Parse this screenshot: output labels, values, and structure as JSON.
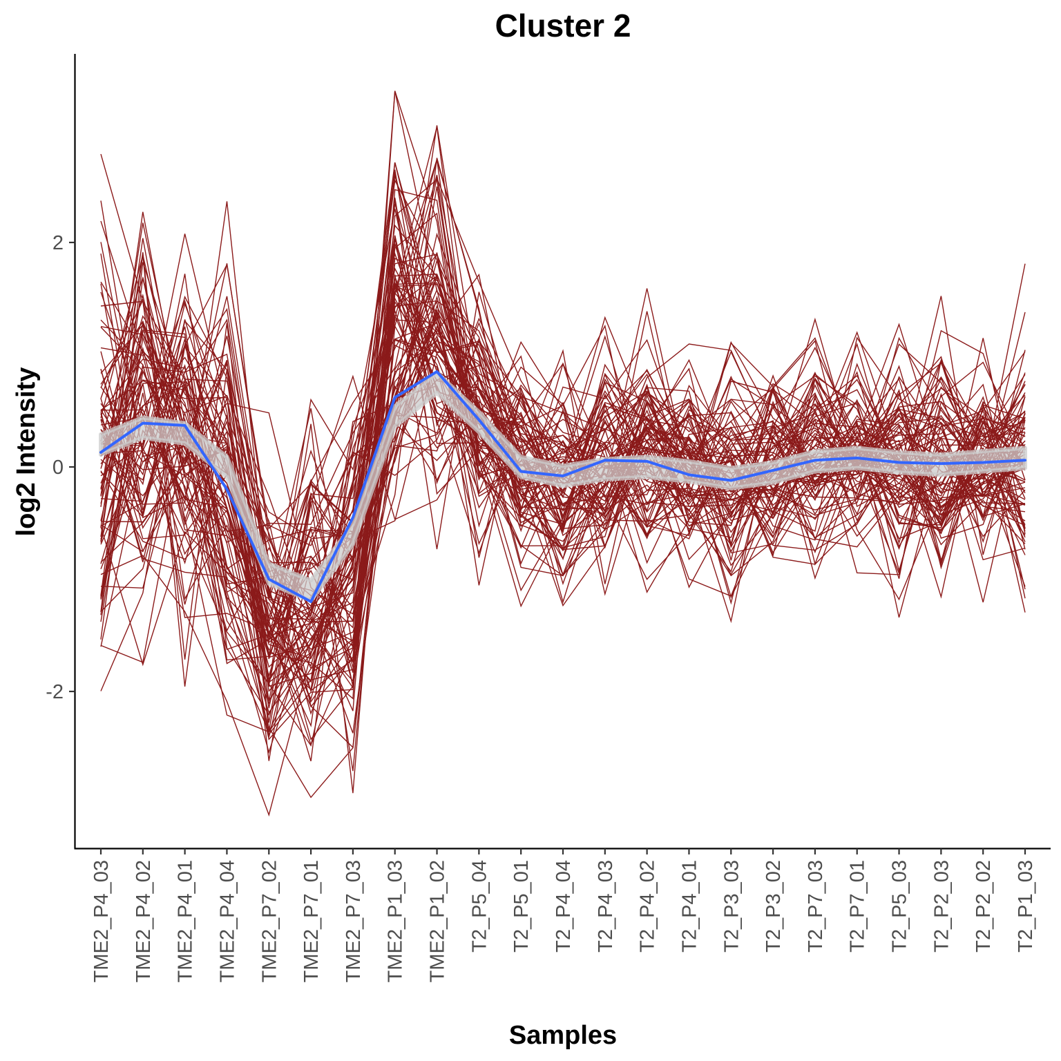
{
  "chart_data": {
    "type": "line",
    "title": "Cluster 2",
    "xlabel": "Samples",
    "ylabel": "log2 Intensity",
    "categories": [
      "TME2_P4_03",
      "TME2_P4_02",
      "TME2_P4_01",
      "TME2_P4_04",
      "TME2_P7_02",
      "TME2_P7_01",
      "TME2_P7_03",
      "TME2_P1_03",
      "TME2_P1_02",
      "T2_P5_04",
      "T2_P5_01",
      "T2_P4_04",
      "T2_P4_03",
      "T2_P4_02",
      "T2_P4_01",
      "T2_P3_03",
      "T2_P3_02",
      "T2_P7_03",
      "T2_P7_01",
      "T2_P5_03",
      "T2_P2_03",
      "T2_P2_02",
      "T2_P1_03"
    ],
    "y_ticks": [
      -2,
      0,
      2
    ],
    "y_tick_labels": [
      "-2",
      "0",
      "2"
    ],
    "ylim": [
      -3.4,
      3.7
    ],
    "grid": false,
    "legend": "none",
    "colors": {
      "profiles": "#8b1a1a",
      "mean": "#3366ff",
      "smooth_band": "#cccccc"
    },
    "mean_series": {
      "name": "",
      "values": [
        0.13,
        0.39,
        0.37,
        -0.2,
        -1.0,
        -1.2,
        -0.45,
        0.62,
        0.85,
        0.42,
        -0.04,
        -0.08,
        0.06,
        0.05,
        -0.07,
        -0.12,
        -0.03,
        0.06,
        0.08,
        0.04,
        0.03,
        0.04,
        0.06
      ]
    },
    "smooth_series": {
      "name": "",
      "values": [
        0.2,
        0.35,
        0.3,
        0.0,
        -0.95,
        -1.1,
        -0.6,
        0.45,
        0.75,
        0.4,
        0.0,
        -0.08,
        -0.02,
        0.0,
        -0.04,
        -0.1,
        -0.05,
        0.05,
        0.08,
        0.04,
        0.02,
        0.05,
        0.08
      ],
      "band_halfwidth": 0.09
    },
    "profile_centers": [
      0.13,
      0.39,
      0.37,
      -0.2,
      -1.5,
      -1.4,
      -1.0,
      1.3,
      1.3,
      0.42,
      -0.04,
      -0.08,
      0.06,
      0.05,
      -0.07,
      -0.12,
      -0.03,
      0.06,
      0.08,
      0.04,
      0.03,
      0.04,
      0.06
    ],
    "profile_spreads": [
      1.2,
      1.1,
      1.0,
      1.1,
      0.85,
      0.85,
      0.95,
      1.1,
      1.05,
      0.75,
      0.65,
      0.6,
      0.6,
      0.6,
      0.6,
      0.6,
      0.6,
      0.6,
      0.6,
      0.6,
      0.6,
      0.6,
      0.7
    ],
    "profile_count": 90
  }
}
